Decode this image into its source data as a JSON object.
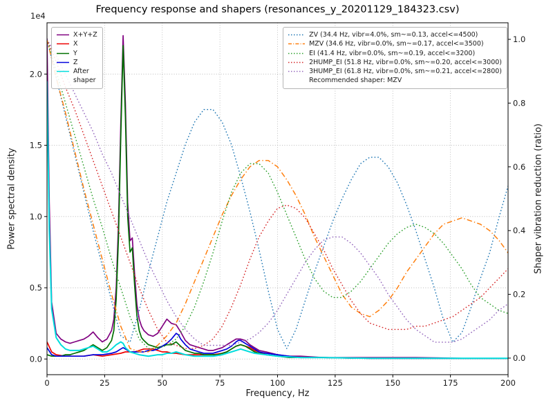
{
  "chart_data": {
    "type": "line",
    "title": "Frequency response and shapers (resonances_y_20201129_184323.csv)",
    "xlabel": "Frequency, Hz",
    "ylabel_left": "Power spectral density",
    "ylabel_right": "Shaper vibration reduction (ratio)",
    "offset_text": "1e4",
    "xlim": [
      0,
      200
    ],
    "ylim_left": [
      -0.11,
      2.36
    ],
    "ylim_right": [
      -0.052,
      1.052
    ],
    "xticks": [
      0,
      25,
      50,
      75,
      100,
      125,
      150,
      175,
      200
    ],
    "xtick_labels": [
      "0",
      "25",
      "50",
      "75",
      "100",
      "125",
      "150",
      "175",
      "200"
    ],
    "yticks_left": [
      0.0,
      0.5,
      1.0,
      1.5,
      2.0
    ],
    "ytick_labels_left": [
      "0.0",
      "0.5",
      "1.0",
      "1.5",
      "2.0"
    ],
    "yticks_right": [
      0.0,
      0.2,
      0.4,
      0.6,
      0.8,
      1.0
    ],
    "ytick_labels_right": [
      "0.0",
      "0.2",
      "0.4",
      "0.6",
      "0.8",
      "1.0"
    ],
    "grid": true,
    "psd_unit_multiplier": 10000,
    "x_shapers": [
      0,
      4,
      8,
      12,
      16,
      20,
      24,
      28,
      32,
      36,
      40,
      44,
      48,
      52,
      56,
      60,
      64,
      68,
      72,
      76,
      80,
      84,
      88,
      92,
      96,
      100,
      104,
      108,
      112,
      116,
      120,
      124,
      128,
      132,
      136,
      140,
      144,
      148,
      152,
      156,
      160,
      164,
      168,
      172,
      176,
      180,
      184,
      188,
      192,
      196,
      200
    ],
    "series": [
      {
        "name": "X+Y+Z",
        "axis": "left",
        "color": "#800080",
        "style": "solid",
        "width": 1.7,
        "x": [
          0,
          1,
          2,
          4,
          6,
          8,
          10,
          12,
          14,
          16,
          18,
          20,
          22,
          24,
          26,
          28,
          29,
          30,
          31,
          32,
          33,
          34,
          35,
          36,
          37,
          38,
          39,
          40,
          41,
          42,
          44,
          46,
          48,
          50,
          52,
          54,
          56,
          58,
          60,
          62,
          64,
          66,
          68,
          70,
          72,
          74,
          76,
          78,
          80,
          82,
          84,
          86,
          88,
          90,
          92,
          95,
          100,
          105,
          110,
          120,
          140,
          160,
          180,
          200
        ],
        "y": [
          2.25,
          1.1,
          0.4,
          0.18,
          0.14,
          0.12,
          0.11,
          0.12,
          0.13,
          0.14,
          0.16,
          0.19,
          0.15,
          0.12,
          0.14,
          0.2,
          0.28,
          0.5,
          0.95,
          1.65,
          2.27,
          1.8,
          1.1,
          0.83,
          0.85,
          0.6,
          0.38,
          0.28,
          0.23,
          0.2,
          0.17,
          0.16,
          0.18,
          0.23,
          0.28,
          0.25,
          0.24,
          0.19,
          0.13,
          0.1,
          0.09,
          0.08,
          0.07,
          0.06,
          0.06,
          0.07,
          0.08,
          0.1,
          0.12,
          0.14,
          0.14,
          0.13,
          0.1,
          0.08,
          0.06,
          0.05,
          0.03,
          0.02,
          0.02,
          0.01,
          0.01,
          0.01,
          0.005,
          0.005
        ]
      },
      {
        "name": "X",
        "axis": "left",
        "color": "#ee0000",
        "style": "solid",
        "width": 1.7,
        "x": [
          0,
          2,
          4,
          8,
          12,
          16,
          20,
          24,
          28,
          32,
          34,
          36,
          38,
          40,
          42,
          44,
          46,
          48,
          50,
          52,
          54,
          56,
          60,
          64,
          68,
          72,
          76,
          78,
          80,
          82,
          84,
          86,
          88,
          90,
          92,
          95,
          100,
          105,
          110,
          120,
          140,
          160,
          180,
          200
        ],
        "y": [
          0.12,
          0.05,
          0.03,
          0.02,
          0.02,
          0.02,
          0.03,
          0.02,
          0.03,
          0.04,
          0.05,
          0.05,
          0.05,
          0.06,
          0.07,
          0.07,
          0.07,
          0.06,
          0.05,
          0.05,
          0.04,
          0.04,
          0.03,
          0.03,
          0.03,
          0.03,
          0.04,
          0.05,
          0.07,
          0.09,
          0.1,
          0.09,
          0.08,
          0.06,
          0.05,
          0.03,
          0.02,
          0.02,
          0.01,
          0.01,
          0.005,
          0.005,
          0.005,
          0.005
        ]
      },
      {
        "name": "Y",
        "axis": "left",
        "color": "#007000",
        "style": "solid",
        "width": 1.7,
        "x": [
          0,
          2,
          4,
          6,
          8,
          10,
          12,
          14,
          16,
          18,
          20,
          22,
          24,
          26,
          28,
          29,
          30,
          31,
          32,
          33,
          34,
          35,
          36,
          37,
          38,
          39,
          40,
          41,
          42,
          44,
          46,
          48,
          50,
          52,
          54,
          56,
          58,
          60,
          62,
          64,
          66,
          68,
          70,
          72,
          74,
          76,
          78,
          80,
          82,
          84,
          86,
          88,
          90,
          92,
          95,
          100,
          105,
          110,
          120,
          140,
          160,
          180,
          200
        ],
        "y": [
          0.03,
          0.02,
          0.02,
          0.02,
          0.03,
          0.03,
          0.04,
          0.05,
          0.06,
          0.08,
          0.1,
          0.08,
          0.06,
          0.08,
          0.13,
          0.2,
          0.42,
          0.85,
          1.55,
          2.2,
          1.7,
          1.0,
          0.75,
          0.78,
          0.52,
          0.3,
          0.2,
          0.15,
          0.13,
          0.1,
          0.09,
          0.08,
          0.09,
          0.1,
          0.1,
          0.12,
          0.09,
          0.06,
          0.05,
          0.04,
          0.04,
          0.03,
          0.03,
          0.03,
          0.03,
          0.04,
          0.05,
          0.07,
          0.09,
          0.1,
          0.09,
          0.07,
          0.05,
          0.04,
          0.03,
          0.02,
          0.01,
          0.01,
          0.01,
          0.005,
          0.005,
          0.005,
          0.005
        ]
      },
      {
        "name": "Z",
        "axis": "left",
        "color": "#0000dd",
        "style": "solid",
        "width": 1.7,
        "x": [
          0,
          2,
          4,
          8,
          12,
          16,
          20,
          24,
          28,
          30,
          32,
          33,
          34,
          36,
          38,
          40,
          42,
          44,
          46,
          48,
          50,
          52,
          54,
          55,
          56,
          57,
          58,
          60,
          62,
          64,
          66,
          68,
          70,
          72,
          74,
          76,
          78,
          80,
          82,
          83,
          84,
          86,
          88,
          90,
          92,
          95,
          100,
          105,
          110,
          120,
          140,
          160,
          180,
          200
        ],
        "y": [
          0.08,
          0.03,
          0.02,
          0.02,
          0.02,
          0.02,
          0.03,
          0.03,
          0.04,
          0.05,
          0.07,
          0.08,
          0.07,
          0.05,
          0.05,
          0.05,
          0.05,
          0.06,
          0.06,
          0.07,
          0.09,
          0.11,
          0.14,
          0.16,
          0.18,
          0.17,
          0.14,
          0.1,
          0.07,
          0.06,
          0.05,
          0.04,
          0.04,
          0.04,
          0.05,
          0.06,
          0.07,
          0.09,
          0.12,
          0.13,
          0.13,
          0.11,
          0.09,
          0.07,
          0.05,
          0.04,
          0.03,
          0.02,
          0.01,
          0.01,
          0.005,
          0.005,
          0.005,
          0.005
        ]
      },
      {
        "name": "After shaper",
        "axis": "left",
        "color": "#00dddd",
        "style": "solid",
        "width": 2.0,
        "x": [
          0,
          1,
          2,
          4,
          6,
          8,
          10,
          12,
          14,
          16,
          18,
          20,
          22,
          24,
          26,
          28,
          30,
          31,
          32,
          33,
          34,
          36,
          38,
          40,
          44,
          48,
          50,
          52,
          54,
          56,
          58,
          60,
          64,
          68,
          72,
          76,
          80,
          82,
          84,
          86,
          88,
          90,
          95,
          100,
          110,
          120,
          140,
          160,
          180,
          200
        ],
        "y": [
          1.95,
          0.9,
          0.35,
          0.15,
          0.1,
          0.07,
          0.06,
          0.06,
          0.06,
          0.07,
          0.08,
          0.09,
          0.07,
          0.05,
          0.05,
          0.07,
          0.1,
          0.11,
          0.12,
          0.11,
          0.08,
          0.05,
          0.04,
          0.03,
          0.02,
          0.03,
          0.03,
          0.04,
          0.04,
          0.05,
          0.04,
          0.03,
          0.02,
          0.02,
          0.02,
          0.03,
          0.05,
          0.06,
          0.07,
          0.06,
          0.05,
          0.04,
          0.03,
          0.02,
          0.01,
          0.01,
          0.005,
          0.005,
          0.005,
          0.005
        ]
      },
      {
        "name": "ZV",
        "axis": "right",
        "color": "#1f77b4",
        "style": "dotted",
        "width": 1.4,
        "y": [
          1.0,
          0.88,
          0.76,
          0.64,
          0.52,
          0.4,
          0.29,
          0.18,
          0.07,
          0.05,
          0.15,
          0.27,
          0.38,
          0.49,
          0.58,
          0.67,
          0.74,
          0.78,
          0.78,
          0.74,
          0.67,
          0.57,
          0.46,
          0.34,
          0.21,
          0.09,
          0.03,
          0.09,
          0.18,
          0.27,
          0.35,
          0.43,
          0.5,
          0.56,
          0.61,
          0.63,
          0.63,
          0.6,
          0.55,
          0.48,
          0.4,
          0.31,
          0.22,
          0.12,
          0.05,
          0.08,
          0.16,
          0.25,
          0.33,
          0.44,
          0.54
        ]
      },
      {
        "name": "MZV",
        "axis": "right",
        "color": "#ff7f0e",
        "style": "dashdot",
        "width": 1.5,
        "y": [
          1.0,
          0.88,
          0.77,
          0.65,
          0.53,
          0.42,
          0.31,
          0.2,
          0.1,
          0.03,
          0.02,
          0.02,
          0.04,
          0.07,
          0.11,
          0.17,
          0.24,
          0.31,
          0.38,
          0.45,
          0.51,
          0.56,
          0.6,
          0.62,
          0.62,
          0.6,
          0.56,
          0.51,
          0.45,
          0.38,
          0.32,
          0.26,
          0.2,
          0.16,
          0.14,
          0.13,
          0.15,
          0.18,
          0.22,
          0.27,
          0.31,
          0.35,
          0.39,
          0.42,
          0.43,
          0.44,
          0.43,
          0.42,
          0.4,
          0.37,
          0.33
        ]
      },
      {
        "name": "EI",
        "axis": "right",
        "color": "#2ca02c",
        "style": "dotted",
        "width": 1.4,
        "y": [
          1.0,
          0.9,
          0.8,
          0.7,
          0.6,
          0.5,
          0.41,
          0.31,
          0.22,
          0.13,
          0.06,
          0.03,
          0.03,
          0.04,
          0.06,
          0.1,
          0.16,
          0.24,
          0.33,
          0.43,
          0.52,
          0.58,
          0.61,
          0.61,
          0.58,
          0.52,
          0.45,
          0.38,
          0.31,
          0.25,
          0.21,
          0.19,
          0.19,
          0.21,
          0.24,
          0.28,
          0.32,
          0.36,
          0.39,
          0.41,
          0.42,
          0.41,
          0.39,
          0.36,
          0.32,
          0.28,
          0.23,
          0.19,
          0.17,
          0.15,
          0.14
        ]
      },
      {
        "name": "2HUMP_EI",
        "axis": "right",
        "color": "#d62728",
        "style": "dotted",
        "width": 1.4,
        "y": [
          1.0,
          0.93,
          0.85,
          0.78,
          0.7,
          0.62,
          0.54,
          0.46,
          0.38,
          0.3,
          0.22,
          0.15,
          0.09,
          0.05,
          0.04,
          0.03,
          0.03,
          0.04,
          0.06,
          0.1,
          0.16,
          0.23,
          0.31,
          0.38,
          0.43,
          0.47,
          0.48,
          0.47,
          0.44,
          0.39,
          0.34,
          0.28,
          0.23,
          0.18,
          0.14,
          0.11,
          0.1,
          0.09,
          0.09,
          0.09,
          0.1,
          0.1,
          0.11,
          0.12,
          0.13,
          0.15,
          0.17,
          0.19,
          0.22,
          0.25,
          0.28
        ]
      },
      {
        "name": "3HUMP_EI",
        "axis": "right",
        "color": "#9467bd",
        "style": "dotted",
        "width": 1.4,
        "y": [
          1.0,
          0.95,
          0.89,
          0.83,
          0.77,
          0.71,
          0.64,
          0.58,
          0.51,
          0.44,
          0.37,
          0.3,
          0.24,
          0.18,
          0.13,
          0.09,
          0.06,
          0.04,
          0.04,
          0.04,
          0.04,
          0.05,
          0.06,
          0.08,
          0.11,
          0.15,
          0.2,
          0.25,
          0.3,
          0.34,
          0.37,
          0.38,
          0.38,
          0.36,
          0.33,
          0.29,
          0.25,
          0.2,
          0.16,
          0.12,
          0.09,
          0.07,
          0.05,
          0.05,
          0.05,
          0.06,
          0.08,
          0.1,
          0.12,
          0.15,
          0.17
        ]
      }
    ],
    "legend_psd": [
      {
        "label_lines": [
          "X+Y+Z"
        ],
        "color": "#800080",
        "style": "solid"
      },
      {
        "label_lines": [
          "X"
        ],
        "color": "#ee0000",
        "style": "solid"
      },
      {
        "label_lines": [
          "Y"
        ],
        "color": "#007000",
        "style": "solid"
      },
      {
        "label_lines": [
          "Z"
        ],
        "color": "#0000dd",
        "style": "solid"
      },
      {
        "label_lines": [
          "After",
          "shaper"
        ],
        "color": "#00dddd",
        "style": "solid"
      }
    ],
    "legend_shapers": {
      "entries": [
        {
          "label": "ZV (34.4 Hz, vibr=4.0%, sm~=0.13, accel<=4500)",
          "color": "#1f77b4",
          "style": "dotted"
        },
        {
          "label": "MZV (34.6 Hz, vibr=0.0%, sm~=0.17, accel<=3500)",
          "color": "#ff7f0e",
          "style": "dashdot"
        },
        {
          "label": "EI (41.4 Hz, vibr=0.0%, sm~=0.19, accel<=3200)",
          "color": "#2ca02c",
          "style": "dotted"
        },
        {
          "label": "2HUMP_EI (51.8 Hz, vibr=0.0%, sm~=0.20, accel<=3000)",
          "color": "#d62728",
          "style": "dotted"
        },
        {
          "label": "3HUMP_EI (61.8 Hz, vibr=0.0%, sm~=0.21, accel<=2800)",
          "color": "#9467bd",
          "style": "dotted"
        }
      ],
      "note": "Recommended shaper: MZV"
    }
  }
}
